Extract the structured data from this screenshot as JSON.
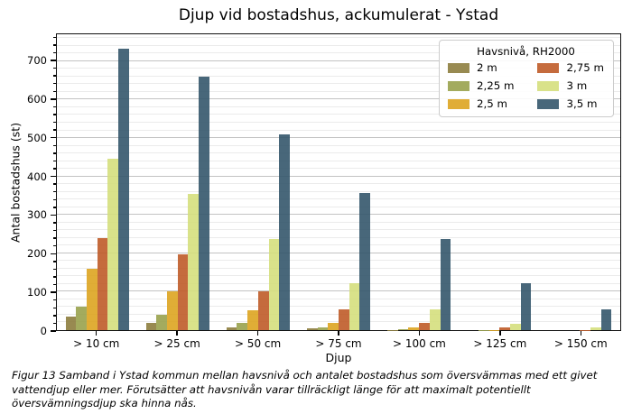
{
  "figure_caption": "Figur 13 Samband i Ystad kommun mellan havsnivå och antalet bostadshus som översvämmas med ett givet vattendjup eller mer. Förutsätter att havsnivån varar tillräckligt länge för att maximalt potentiellt översvämningsdjup ska hinna nås.",
  "chart_data": {
    "type": "bar",
    "title": "Djup vid bostadshus, ackumulerat - Ystad",
    "xlabel": "Djup",
    "ylabel": "Antal bostadshus (st)",
    "ylim": [
      0,
      770
    ],
    "ytick_step": 100,
    "ytick_max_label": 700,
    "minor_grid_step": 20,
    "grid": true,
    "bar_alpha": 0.9,
    "legend_title": "Havsnivå, RH2000",
    "legend_position": "upper right",
    "legend_columns": 2,
    "categories": [
      "> 10 cm",
      "> 25 cm",
      "> 50 cm",
      "> 75 cm",
      "> 100 cm",
      "> 125 cm",
      "> 150 cm"
    ],
    "series": [
      {
        "name": "2 m",
        "color": "#8d7d3e",
        "values": [
          35,
          18,
          8,
          4,
          1,
          0,
          0
        ]
      },
      {
        "name": "2,25 m",
        "color": "#99a24d",
        "values": [
          62,
          40,
          18,
          7,
          2,
          1,
          0
        ]
      },
      {
        "name": "2,5 m",
        "color": "#dda420",
        "values": [
          160,
          100,
          52,
          18,
          7,
          1,
          0
        ]
      },
      {
        "name": "2,75 m",
        "color": "#bf5b28",
        "values": [
          240,
          198,
          100,
          53,
          18,
          7,
          1
        ]
      },
      {
        "name": "3 m",
        "color": "#d5df7d",
        "values": [
          445,
          355,
          237,
          123,
          55,
          17,
          7
        ]
      },
      {
        "name": "3,5 m",
        "color": "#34576b",
        "values": [
          733,
          660,
          510,
          357,
          237,
          123,
          55
        ]
      }
    ]
  }
}
